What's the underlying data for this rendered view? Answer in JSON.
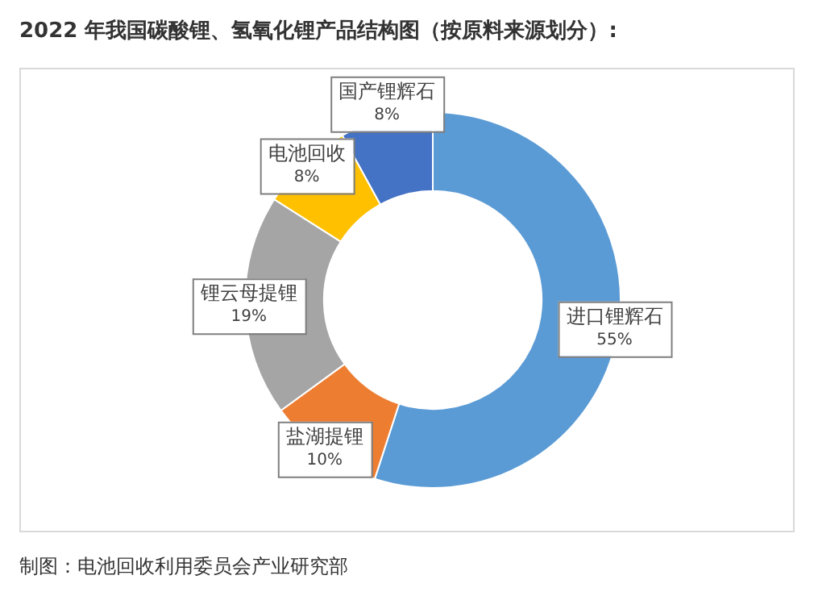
{
  "chart_data": {
    "type": "donut",
    "title": "2022 年我国碳酸锂、氢氧化锂产品结构图（按原料来源划分）:",
    "categories": [
      "进口锂辉石",
      "盐湖提锂",
      "锂云母提锂",
      "电池回收",
      "国产锂辉石"
    ],
    "values": [
      55,
      10,
      19,
      8,
      8
    ],
    "value_labels": [
      "55%",
      "10%",
      "19%",
      "8%",
      "8%"
    ],
    "colors": [
      "#5b9bd5",
      "#ed7d31",
      "#a5a5a5",
      "#ffc000",
      "#4472c4"
    ],
    "legend": false,
    "annotations": [
      "制图：电池回收利用委员会产业研究部"
    ]
  }
}
